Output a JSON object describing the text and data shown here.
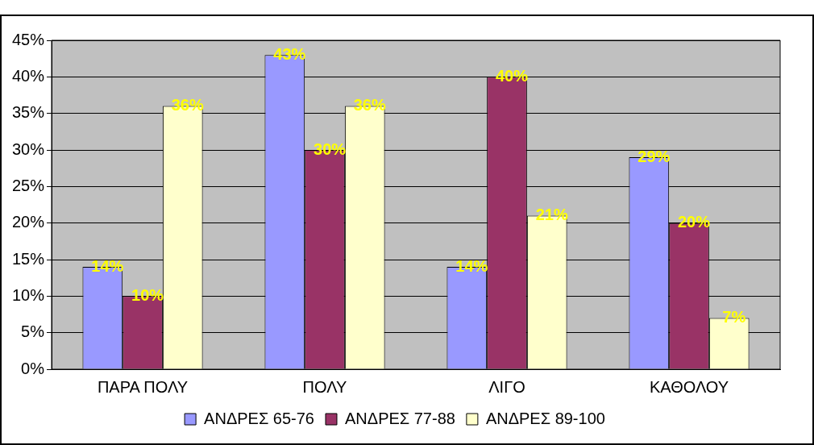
{
  "chart_data": {
    "type": "bar",
    "categories": [
      "ΠΑΡΑ ΠΟΛΥ",
      "ΠΟΛΥ",
      "ΛΙΓΟ",
      "ΚΑΘΟΛΟΥ"
    ],
    "series": [
      {
        "name": "ΑΝΔΡΕΣ 65-76",
        "color": "#9999ff",
        "values": [
          14,
          43,
          14,
          29
        ],
        "value_labels": [
          "14%",
          "43%",
          "14%",
          "29%"
        ]
      },
      {
        "name": "ΑΝΔΡΕΣ 77-88",
        "color": "#993366",
        "values": [
          10,
          30,
          40,
          20
        ],
        "value_labels": [
          "10%",
          "30%",
          "40%",
          "20%"
        ]
      },
      {
        "name": "ΑΝΔΡΕΣ 89-100",
        "color": "#ffffcc",
        "values": [
          36,
          36,
          21,
          7
        ],
        "value_labels": [
          "36%",
          "36%",
          "21%",
          "7%"
        ]
      }
    ],
    "ylim": [
      0,
      45
    ],
    "yticks": [
      {
        "value": 0,
        "label": "0%"
      },
      {
        "value": 5,
        "label": "5%"
      },
      {
        "value": 10,
        "label": "10%"
      },
      {
        "value": 15,
        "label": "15%"
      },
      {
        "value": 20,
        "label": "20%"
      },
      {
        "value": 25,
        "label": "25%"
      },
      {
        "value": 30,
        "label": "30%"
      },
      {
        "value": 35,
        "label": "35%"
      },
      {
        "value": 40,
        "label": "40%"
      },
      {
        "value": 45,
        "label": "45%"
      }
    ],
    "grid": "y",
    "legend": "bottom"
  }
}
